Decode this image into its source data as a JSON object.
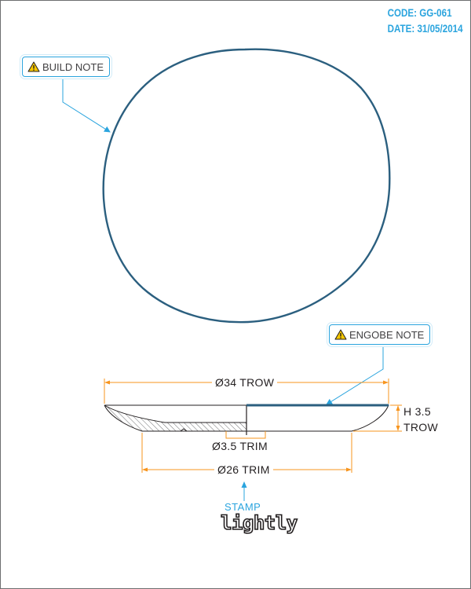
{
  "title_block": {
    "code": "CODE: GG-061",
    "date": "DATE: 31/05/2014"
  },
  "callouts": {
    "build_note": "BUILD NOTE",
    "engobe_note": "ENGOBE NOTE",
    "warning_icon": "warning-triangle-icon"
  },
  "dimensions": {
    "outer_diameter": "Ø34 TROW",
    "height_line1": "H 3.5",
    "height_line2": "TROW",
    "foot_ring": "Ø3.5 TRIM",
    "base_diameter": "Ø26 TRIM"
  },
  "stamp": {
    "label": "STAMP",
    "logo": "lightly"
  },
  "colors": {
    "outline": "#2b5f7f",
    "dimension": "#f7941d",
    "callout": "#2aa4de",
    "title": "#2aa4de",
    "line": "#231f20"
  }
}
